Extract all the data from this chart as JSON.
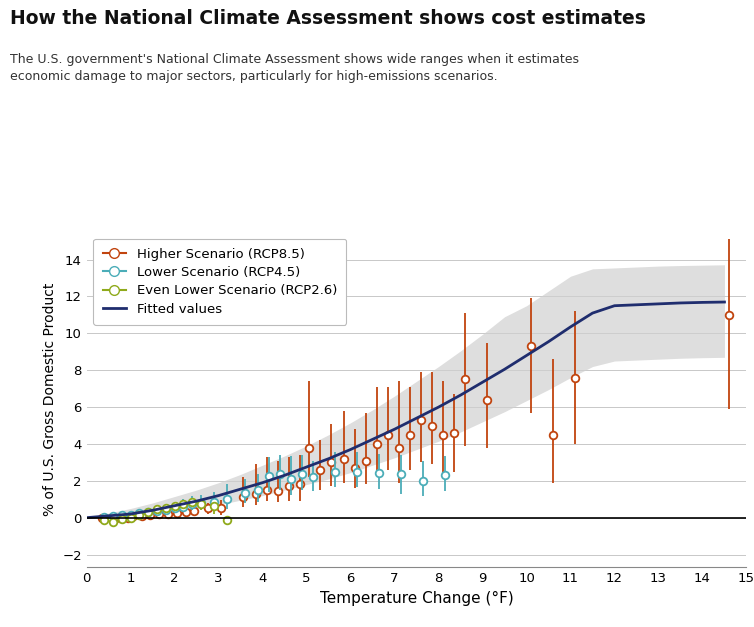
{
  "title": "How the National Climate Assessment shows cost estimates",
  "subtitle": "The U.S. government's National Climate Assessment shows wide ranges when it estimates\neconomic damage to major sectors, particularly for high-emissions scenarios.",
  "xlabel": "Temperature Change (°F)",
  "ylabel": "% of U.S. Gross Domestic Product",
  "xlim": [
    0,
    15
  ],
  "ylim": [
    -2.7,
    15.5
  ],
  "xticks": [
    0,
    1,
    2,
    3,
    4,
    5,
    6,
    7,
    8,
    9,
    10,
    11,
    12,
    13,
    14,
    15
  ],
  "yticks": [
    -2,
    0,
    2,
    4,
    6,
    8,
    10,
    12,
    14
  ],
  "higher_color": "#c1440e",
  "lower_color": "#4badb8",
  "even_lower_color": "#8faa1b",
  "fitted_color": "#1f2d6e",
  "shade_color": "#d0d0d0",
  "higher_data": {
    "x": [
      0.35,
      0.55,
      0.75,
      0.95,
      1.05,
      1.25,
      1.45,
      1.65,
      1.85,
      2.05,
      2.25,
      2.45,
      2.75,
      3.05,
      3.55,
      3.85,
      4.1,
      4.35,
      4.6,
      4.85,
      5.05,
      5.3,
      5.55,
      5.85,
      6.1,
      6.35,
      6.6,
      6.85,
      7.1,
      7.35,
      7.6,
      7.85,
      8.1,
      8.35,
      8.6,
      9.1,
      10.1,
      10.6,
      11.1,
      14.6
    ],
    "y": [
      0.0,
      0.0,
      0.0,
      0.0,
      0.1,
      0.1,
      0.15,
      0.2,
      0.2,
      0.25,
      0.3,
      0.35,
      0.5,
      0.55,
      1.1,
      1.3,
      1.5,
      1.45,
      1.7,
      1.8,
      3.8,
      2.6,
      3.0,
      3.2,
      2.7,
      3.1,
      4.0,
      4.5,
      3.8,
      4.5,
      5.3,
      5.0,
      4.5,
      4.6,
      7.5,
      6.4,
      9.3,
      4.5,
      7.6,
      11.0
    ],
    "yerr_lo": [
      0.05,
      0.05,
      0.05,
      0.05,
      0.1,
      0.1,
      0.1,
      0.1,
      0.1,
      0.15,
      0.2,
      0.2,
      0.3,
      0.4,
      0.5,
      0.6,
      0.6,
      0.6,
      0.8,
      0.9,
      1.6,
      1.1,
      1.3,
      1.3,
      1.1,
      1.3,
      1.6,
      1.9,
      1.9,
      1.9,
      2.3,
      2.1,
      2.1,
      2.1,
      3.6,
      2.6,
      3.6,
      2.6,
      3.6,
      5.1
    ],
    "yerr_hi": [
      0.05,
      0.05,
      0.05,
      0.05,
      0.1,
      0.1,
      0.1,
      0.1,
      0.1,
      0.15,
      0.2,
      0.2,
      0.3,
      0.4,
      1.1,
      1.6,
      1.8,
      1.6,
      1.6,
      1.6,
      3.6,
      1.6,
      2.1,
      2.6,
      2.1,
      2.6,
      3.1,
      2.6,
      3.6,
      2.6,
      2.6,
      2.9,
      2.9,
      2.1,
      3.6,
      3.1,
      2.6,
      4.1,
      3.6,
      4.1
    ]
  },
  "lower_data": {
    "x": [
      0.4,
      0.6,
      0.8,
      1.0,
      1.2,
      1.4,
      1.6,
      1.8,
      2.0,
      2.2,
      2.4,
      2.6,
      2.9,
      3.2,
      3.6,
      3.9,
      4.15,
      4.4,
      4.65,
      4.9,
      5.15,
      5.65,
      6.15,
      6.65,
      7.15,
      7.65,
      8.15
    ],
    "y": [
      0.05,
      0.1,
      0.15,
      0.15,
      0.25,
      0.3,
      0.35,
      0.4,
      0.5,
      0.6,
      0.75,
      0.8,
      0.85,
      1.0,
      1.35,
      1.5,
      2.25,
      2.35,
      2.1,
      2.35,
      2.2,
      2.5,
      2.5,
      2.4,
      2.35,
      2.0,
      2.3
    ],
    "yerr_lo": [
      0.15,
      0.15,
      0.15,
      0.15,
      0.15,
      0.15,
      0.15,
      0.2,
      0.25,
      0.3,
      0.35,
      0.35,
      0.45,
      0.55,
      0.55,
      0.65,
      0.85,
      0.85,
      0.85,
      0.85,
      0.75,
      0.85,
      0.85,
      0.85,
      1.05,
      0.85,
      0.85
    ],
    "yerr_hi": [
      0.15,
      0.15,
      0.15,
      0.15,
      0.15,
      0.2,
      0.25,
      0.3,
      0.35,
      0.4,
      0.45,
      0.45,
      0.55,
      0.85,
      0.75,
      0.85,
      1.05,
      1.05,
      1.25,
      1.05,
      0.85,
      1.05,
      1.05,
      1.05,
      1.05,
      1.05,
      1.05
    ]
  },
  "even_lower_data": {
    "x": [
      0.4,
      0.6,
      0.8,
      1.0,
      1.2,
      1.4,
      1.6,
      1.8,
      2.0,
      2.2,
      2.4,
      2.6,
      2.9,
      3.2
    ],
    "y": [
      -0.15,
      -0.25,
      -0.05,
      0.0,
      0.15,
      0.3,
      0.45,
      0.55,
      0.65,
      0.75,
      0.85,
      0.75,
      0.65,
      -0.1
    ],
    "yerr_lo": [
      0.1,
      0.2,
      0.1,
      0.1,
      0.1,
      0.15,
      0.2,
      0.2,
      0.25,
      0.3,
      0.35,
      0.35,
      0.45,
      0.25
    ],
    "yerr_hi": [
      0.1,
      0.1,
      0.1,
      0.1,
      0.1,
      0.1,
      0.1,
      0.15,
      0.15,
      0.15,
      0.15,
      0.15,
      0.15,
      0.1
    ]
  },
  "fitted_x": [
    0.0,
    0.5,
    1.0,
    1.5,
    2.0,
    2.5,
    3.0,
    3.5,
    4.0,
    4.5,
    5.0,
    5.5,
    6.0,
    6.5,
    7.0,
    7.5,
    8.0,
    8.5,
    9.0,
    9.5,
    10.0,
    10.5,
    11.0,
    11.5,
    12.0,
    12.5,
    13.0,
    13.5,
    14.0,
    14.5
  ],
  "fitted_y": [
    0.0,
    0.1,
    0.2,
    0.4,
    0.65,
    0.9,
    1.2,
    1.55,
    1.9,
    2.3,
    2.75,
    3.2,
    3.7,
    4.25,
    4.8,
    5.4,
    6.0,
    6.65,
    7.35,
    8.05,
    8.8,
    9.55,
    10.35,
    11.1,
    11.5,
    11.55,
    11.6,
    11.65,
    11.68,
    11.7
  ],
  "fitted_lo": [
    0.0,
    0.0,
    0.05,
    0.15,
    0.3,
    0.5,
    0.7,
    0.95,
    1.2,
    1.5,
    1.8,
    2.1,
    2.45,
    2.85,
    3.25,
    3.7,
    4.15,
    4.65,
    5.2,
    5.75,
    6.35,
    6.95,
    7.6,
    8.2,
    8.5,
    8.55,
    8.6,
    8.65,
    8.68,
    8.7
  ],
  "fitted_hi": [
    0.0,
    0.25,
    0.5,
    0.8,
    1.15,
    1.5,
    1.9,
    2.35,
    2.85,
    3.35,
    3.9,
    4.5,
    5.15,
    5.85,
    6.6,
    7.4,
    8.2,
    9.05,
    9.95,
    10.9,
    11.5,
    12.3,
    13.1,
    13.5,
    13.55,
    13.6,
    13.65,
    13.68,
    13.7,
    13.72
  ],
  "legend_labels": [
    "Higher Scenario (RCP8.5)",
    "Lower Scenario (RCP4.5)",
    "Even Lower Scenario (RCP2.6)",
    "Fitted values"
  ],
  "legend_colors": [
    "#c1440e",
    "#4badb8",
    "#8faa1b",
    "#1f2d6e"
  ]
}
